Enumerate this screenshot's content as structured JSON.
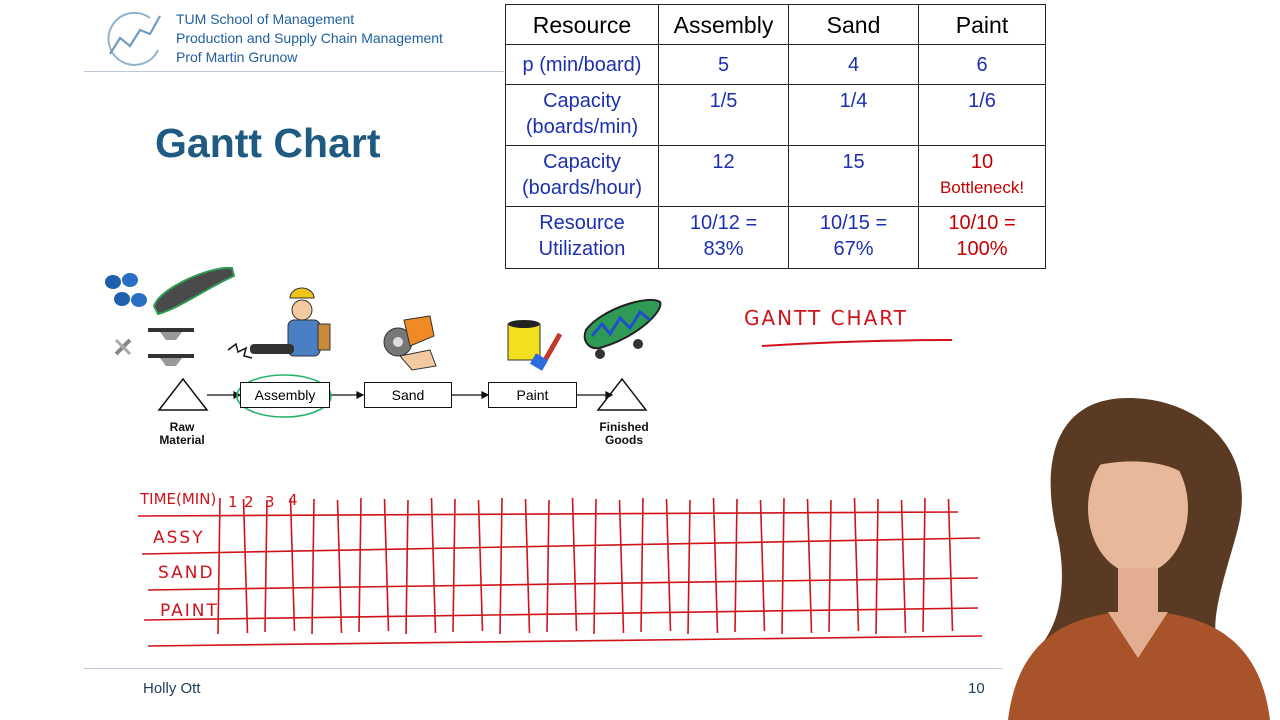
{
  "header": {
    "school": "TUM School of Management",
    "chair": "Production and Supply Chain Management",
    "professor": "Prof Martin Grunow"
  },
  "slide": {
    "title": "Gantt Chart"
  },
  "table": {
    "columns": [
      "Resource",
      "Assembly",
      "Sand",
      "Paint"
    ],
    "rows": {
      "p": {
        "label": "p (min/board)",
        "assembly": "5",
        "sand": "4",
        "paint": "6"
      },
      "cap_min": {
        "label_l1": "Capacity",
        "label_l2": "(boards/min)",
        "assembly": "1/5",
        "sand": "1/4",
        "paint": "1/6"
      },
      "cap_hour": {
        "label_l1": "Capacity",
        "label_l2": "(boards/hour)",
        "assembly": "12",
        "sand": "15",
        "paint": "10",
        "paint_note": "Bottleneck!"
      },
      "util": {
        "label_l1": "Resource",
        "label_l2": "Utilization",
        "assembly_l1": "10/12 =",
        "assembly_l2": "83%",
        "sand_l1": "10/15 =",
        "sand_l2": "67%",
        "paint_l1": "10/10 =",
        "paint_l2": "100%"
      }
    },
    "colors": {
      "value": "#1c2fb0",
      "highlight": "#c40000"
    }
  },
  "process": {
    "start_label_l1": "Raw",
    "start_label_l2": "Material",
    "steps": [
      "Assembly",
      "Sand",
      "Paint"
    ],
    "end_label_l1": "Finished",
    "end_label_l2": "Goods",
    "icons": [
      "wheels-icon",
      "deck-icon",
      "trucks-icon",
      "tools-icon",
      "worker-icon",
      "grinder-icon",
      "paint-can-icon",
      "skateboard-icon"
    ]
  },
  "annotations": {
    "gantt_heading": "GANTT CHART",
    "time_label": "TIME(MIN)",
    "time_ticks": [
      "1",
      "2",
      "3",
      "4"
    ],
    "rows": [
      "ASSY",
      "SAND",
      "PAINT"
    ],
    "ink_color": "#d1121b"
  },
  "footer": {
    "presenter": "Holly Ott",
    "page": "10"
  }
}
